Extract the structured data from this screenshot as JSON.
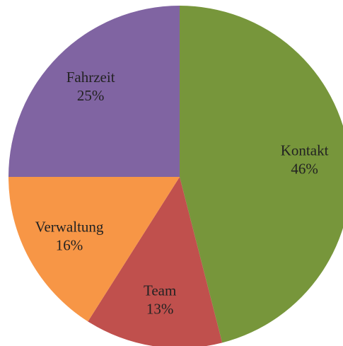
{
  "chart_data": {
    "type": "pie",
    "categories": [
      "Kontakt",
      "Team",
      "Verwaltung",
      "Fahrzeit"
    ],
    "values": [
      46,
      13,
      16,
      25
    ],
    "value_labels": [
      "46%",
      "13%",
      "16%",
      "25%"
    ],
    "colors": [
      "#77963b",
      "#c0504d",
      "#f79646",
      "#8064a2"
    ]
  }
}
